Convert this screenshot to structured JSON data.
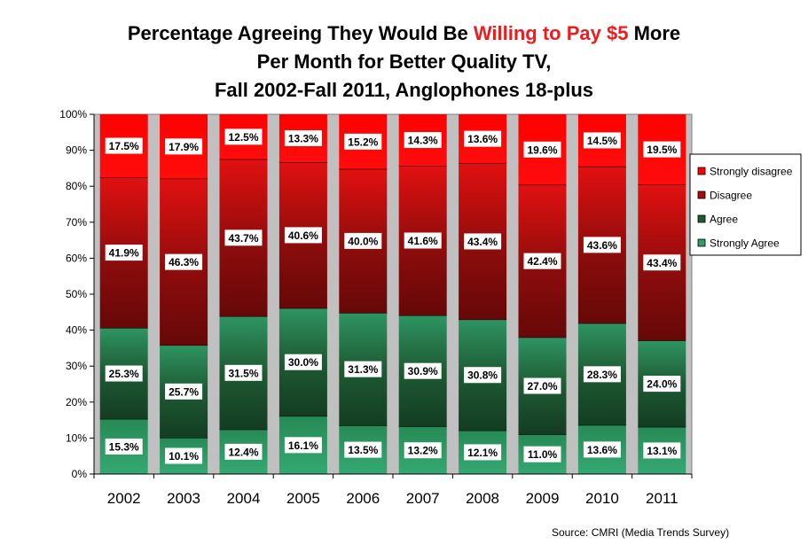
{
  "chart_data": {
    "type": "bar",
    "stacked": true,
    "normalized": true,
    "title": {
      "prefix": "Percentage Agreeing They Would Be ",
      "highlight": "Willing to Pay $5",
      "suffix": " More",
      "line2": "Per Month for Better Quality TV,",
      "line3": "Fall 2002-Fall 2011, Anglophones 18-plus"
    },
    "xlabel": "",
    "ylabel": "",
    "ylim": [
      0,
      100
    ],
    "yticks": [
      "0%",
      "10%",
      "20%",
      "30%",
      "40%",
      "50%",
      "60%",
      "70%",
      "80%",
      "90%",
      "100%"
    ],
    "categories": [
      "2002",
      "2003",
      "2004",
      "2005",
      "2006",
      "2007",
      "2008",
      "2009",
      "2010",
      "2011"
    ],
    "series": [
      {
        "name": "Strongly Agree",
        "color": "#2e9e64",
        "values": [
          15.3,
          10.1,
          12.4,
          16.1,
          13.5,
          13.2,
          12.1,
          11.0,
          13.6,
          13.1
        ],
        "labels": [
          "15.3%",
          "10.1%",
          "12.4%",
          "16.1%",
          "13.5%",
          "13.2%",
          "12.1%",
          "11.0%",
          "13.6%",
          "13.1%"
        ]
      },
      {
        "name": "Agree",
        "color": "#1e5a32",
        "values": [
          25.3,
          25.7,
          31.5,
          30.0,
          31.3,
          30.9,
          30.8,
          27.0,
          28.3,
          24.0
        ],
        "labels": [
          "25.3%",
          "25.7%",
          "31.5%",
          "30.0%",
          "31.3%",
          "30.9%",
          "30.8%",
          "27.0%",
          "28.3%",
          "24.0%"
        ]
      },
      {
        "name": "Disagree",
        "color": "#a50e0e",
        "values": [
          41.9,
          46.3,
          43.7,
          40.6,
          40.0,
          41.6,
          43.4,
          42.4,
          43.6,
          43.4
        ],
        "labels": [
          "41.9%",
          "46.3%",
          "43.7%",
          "40.6%",
          "40.0%",
          "41.6%",
          "43.4%",
          "42.4%",
          "43.6%",
          "43.4%"
        ]
      },
      {
        "name": "Strongly disagree",
        "color": "#ff0000",
        "values": [
          17.5,
          17.9,
          12.5,
          13.3,
          15.2,
          14.3,
          13.6,
          19.6,
          14.5,
          19.5
        ],
        "labels": [
          "17.5%",
          "17.9%",
          "12.5%",
          "13.3%",
          "15.2%",
          "14.3%",
          "13.6%",
          "19.6%",
          "14.5%",
          "19.5%"
        ]
      }
    ],
    "legend_order": [
      "Strongly disagree",
      "Disagree",
      "Agree",
      "Strongly Agree"
    ],
    "legend_position": "right",
    "plot_background": "#c0c0c0",
    "grid": false
  },
  "source": "Source: CMRI (Media Trends Survey)"
}
